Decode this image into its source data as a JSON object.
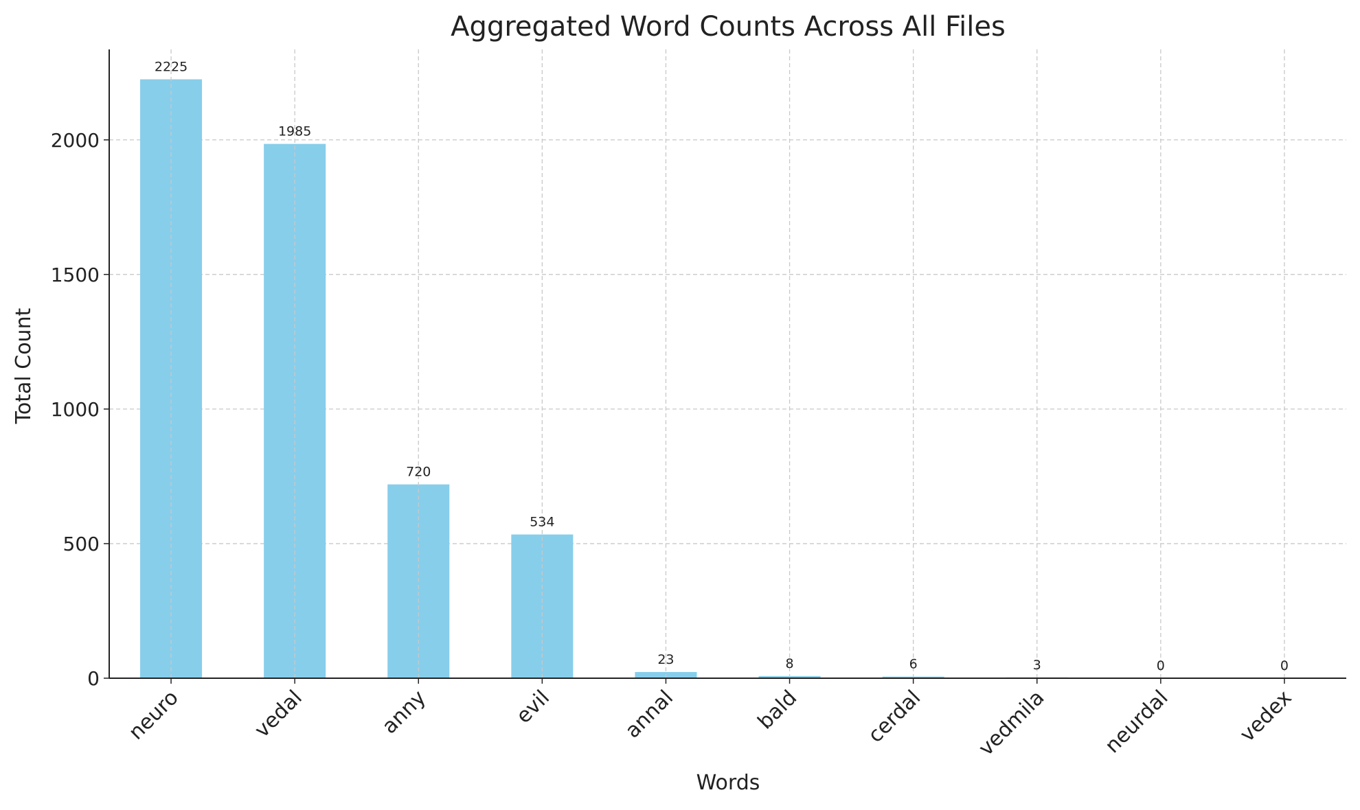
{
  "chart_data": {
    "type": "bar",
    "title": "Aggregated Word Counts Across All Files",
    "x_label": "Words",
    "y_label": "Total Count",
    "categories": [
      "neuro",
      "vedal",
      "anny",
      "evil",
      "annal",
      "bald",
      "cerdal",
      "vedmila",
      "neurdal",
      "vedex"
    ],
    "values": [
      2225,
      1985,
      720,
      534,
      23,
      8,
      6,
      3,
      0,
      0
    ],
    "color": "#87ceeb",
    "ylim": [
      0,
      2336
    ],
    "yticks": [
      0,
      500,
      1000,
      1500,
      2000
    ],
    "grid": true
  }
}
